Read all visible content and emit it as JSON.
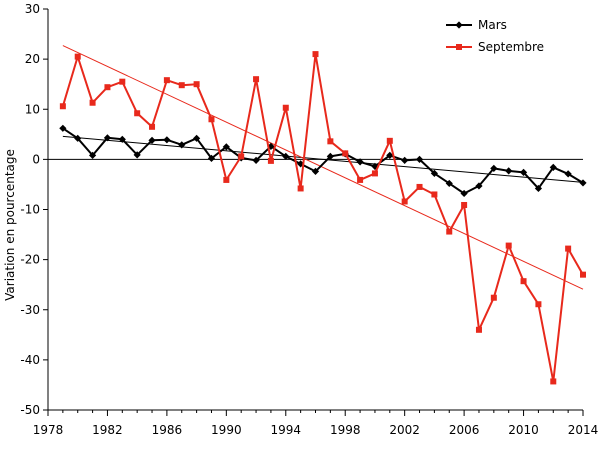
{
  "chart_data": {
    "type": "line",
    "ylabel": "Variation en pourcentage",
    "xlim": [
      1978,
      2014
    ],
    "ylim": [
      -50,
      30
    ],
    "x_ticks": [
      1978,
      1982,
      1986,
      1990,
      1994,
      1998,
      2002,
      2006,
      2010,
      2014
    ],
    "y_ticks": [
      -50,
      -40,
      -30,
      -20,
      -10,
      0,
      10,
      20,
      30
    ],
    "grid": false,
    "legend": "top-right",
    "x": [
      1979,
      1980,
      1981,
      1982,
      1983,
      1984,
      1985,
      1986,
      1987,
      1988,
      1989,
      1990,
      1991,
      1992,
      1993,
      1994,
      1995,
      1996,
      1997,
      1998,
      1999,
      2000,
      2001,
      2002,
      2003,
      2004,
      2005,
      2006,
      2007,
      2008,
      2009,
      2010,
      2011,
      2012,
      2013,
      2014
    ],
    "series": [
      {
        "name": "Mars",
        "color": "#000000",
        "marker": "diamond",
        "values": [
          6.2,
          4.2,
          0.8,
          4.3,
          4.0,
          0.9,
          3.8,
          3.9,
          2.9,
          4.2,
          0.2,
          2.5,
          0.3,
          -0.2,
          2.6,
          0.6,
          -0.9,
          -2.4,
          0.6,
          1.1,
          -0.5,
          -1.4,
          0.8,
          -0.2,
          0.0,
          -2.8,
          -4.8,
          -6.8,
          -5.3,
          -1.8,
          -2.3,
          -2.6,
          -5.8,
          -1.6,
          -2.9,
          -4.7
        ],
        "trend": [
          4.6,
          -4.6
        ]
      },
      {
        "name": "Septembre",
        "color": "#e8291c",
        "marker": "square",
        "values": [
          10.6,
          20.5,
          11.3,
          14.4,
          15.5,
          9.2,
          6.5,
          15.8,
          14.8,
          15.0,
          8.0,
          -4.1,
          0.6,
          16.0,
          -0.3,
          10.3,
          -5.8,
          21.0,
          3.6,
          1.2,
          -4.1,
          -2.8,
          3.7,
          -8.4,
          -5.5,
          -7.0,
          -14.4,
          -9.1,
          -34.0,
          -27.6,
          -17.2,
          -24.3,
          -28.9,
          -44.3,
          -17.8,
          -23.0
        ],
        "trend": [
          22.7,
          -25.9
        ]
      }
    ]
  }
}
